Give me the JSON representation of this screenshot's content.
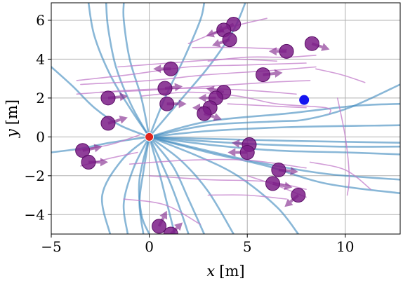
{
  "chart_data": {
    "type": "scatter",
    "xlabel_var": "x",
    "xlabel_unit": "[m]",
    "ylabel_var": "y",
    "ylabel_unit": "[m]",
    "xlim": [
      -5,
      12.8
    ],
    "ylim": [
      -5,
      6.9
    ],
    "xticks": [
      -5,
      0,
      5,
      10
    ],
    "yticks": [
      -4,
      -2,
      0,
      2,
      4,
      6
    ],
    "xtick_labels": [
      "−5",
      "0",
      "5",
      "10"
    ],
    "ytick_labels": [
      "−4",
      "−2",
      "0",
      "2",
      "4",
      "6"
    ],
    "grid": true,
    "colors": {
      "robot": "#e0231c",
      "goal": "#1414f0",
      "agent": "#7b1c87",
      "robot_trajectory": "#3b87bd",
      "agent_trajectory": "#c27bc9",
      "grid": "#b0b0b0"
    },
    "robot": {
      "x": 0,
      "y": 0
    },
    "goal": {
      "x": 7.9,
      "y": 1.9
    },
    "agents": [
      {
        "x": 4.3,
        "y": 5.8,
        "dx": -0.9,
        "dy": -0.4
      },
      {
        "x": 3.8,
        "y": 5.5,
        "dx": -0.9,
        "dy": -0.3
      },
      {
        "x": 4.1,
        "y": 5.0,
        "dx": -0.9,
        "dy": -0.3
      },
      {
        "x": 7.0,
        "y": 4.4,
        "dx": -0.9,
        "dy": 0.0
      },
      {
        "x": 8.3,
        "y": 4.8,
        "dx": 0.9,
        "dy": -0.3
      },
      {
        "x": 1.1,
        "y": 3.5,
        "dx": -0.9,
        "dy": 0.0
      },
      {
        "x": 5.8,
        "y": 3.2,
        "dx": 1.0,
        "dy": 0.1
      },
      {
        "x": 0.8,
        "y": 2.5,
        "dx": 0.9,
        "dy": 0.1
      },
      {
        "x": 3.8,
        "y": 2.3,
        "dx": -0.9,
        "dy": 0.2
      },
      {
        "x": 3.4,
        "y": 2.0,
        "dx": -0.9,
        "dy": 0.0
      },
      {
        "x": 0.9,
        "y": 1.7,
        "dx": 1.0,
        "dy": 0.0
      },
      {
        "x": 3.1,
        "y": 1.5,
        "dx": -0.9,
        "dy": 0.0
      },
      {
        "x": 2.8,
        "y": 1.2,
        "dx": 0.9,
        "dy": -0.3
      },
      {
        "x": -2.1,
        "y": 2.0,
        "dx": 1.0,
        "dy": 0.1
      },
      {
        "x": -2.1,
        "y": 0.7,
        "dx": 1.0,
        "dy": 0.3
      },
      {
        "x": 5.1,
        "y": -0.4,
        "dx": -0.9,
        "dy": 0.1
      },
      {
        "x": 5.0,
        "y": -0.8,
        "dx": -1.0,
        "dy": 0.0
      },
      {
        "x": -3.4,
        "y": -0.7,
        "dx": 1.0,
        "dy": 0.2
      },
      {
        "x": -3.1,
        "y": -1.3,
        "dx": 1.0,
        "dy": 0.0
      },
      {
        "x": 6.6,
        "y": -1.7,
        "dx": 1.0,
        "dy": -0.1
      },
      {
        "x": 6.3,
        "y": -2.4,
        "dx": 1.0,
        "dy": -0.2
      },
      {
        "x": 7.6,
        "y": -3.0,
        "dx": -0.7,
        "dy": -0.6
      },
      {
        "x": 0.5,
        "y": -4.6,
        "dx": 0.4,
        "dy": 0.8
      },
      {
        "x": 1.1,
        "y": -5.0,
        "dx": 0.6,
        "dy": 0.6
      }
    ],
    "robot_trajectories": [
      [
        [
          0,
          0
        ],
        [
          -1,
          1.5
        ],
        [
          -2,
          3.2
        ],
        [
          -2.8,
          5.2
        ],
        [
          -3.1,
          6.9
        ]
      ],
      [
        [
          0,
          0
        ],
        [
          -0.9,
          1.6
        ],
        [
          -1.7,
          3.6
        ],
        [
          -2.1,
          5.6
        ],
        [
          -2.2,
          6.9
        ]
      ],
      [
        [
          0,
          0
        ],
        [
          -0.4,
          2
        ],
        [
          -1,
          4
        ],
        [
          -1.3,
          6
        ],
        [
          -1.3,
          6.9
        ]
      ],
      [
        [
          0,
          0
        ],
        [
          0.8,
          2
        ],
        [
          1.8,
          4.1
        ],
        [
          2.6,
          6
        ],
        [
          2.8,
          6.9
        ]
      ],
      [
        [
          0,
          0
        ],
        [
          1.6,
          1.9
        ],
        [
          3.1,
          3.7
        ],
        [
          4.3,
          5.5
        ],
        [
          4.9,
          6.9
        ]
      ],
      [
        [
          0,
          0
        ],
        [
          -1.5,
          0.6
        ],
        [
          -2.8,
          1.5
        ],
        [
          -3.9,
          2.6
        ],
        [
          -5,
          3.6
        ]
      ],
      [
        [
          0,
          0
        ],
        [
          -2,
          -0.3
        ],
        [
          -3.5,
          -0.6
        ],
        [
          -5,
          -0.8
        ]
      ],
      [
        [
          0,
          0
        ],
        [
          -1.4,
          -1.2
        ],
        [
          -2.4,
          -3
        ],
        [
          -2,
          -5
        ]
      ],
      [
        [
          0,
          0
        ],
        [
          -0.8,
          -1.6
        ],
        [
          -1.3,
          -3.4
        ],
        [
          -1.1,
          -5
        ]
      ],
      [
        [
          0,
          0
        ],
        [
          -0.3,
          -1.8
        ],
        [
          -0.5,
          -3.4
        ],
        [
          -0.3,
          -5
        ]
      ],
      [
        [
          0,
          0
        ],
        [
          0.5,
          -1.8
        ],
        [
          0.9,
          -3.4
        ],
        [
          1.3,
          -5
        ]
      ],
      [
        [
          0,
          0
        ],
        [
          1.2,
          -1.5
        ],
        [
          2,
          -3.2
        ],
        [
          2.8,
          -5
        ]
      ],
      [
        [
          0,
          0
        ],
        [
          1.6,
          -1.2
        ],
        [
          3,
          -2.8
        ],
        [
          4.3,
          -5
        ]
      ],
      [
        [
          0,
          0
        ],
        [
          2.5,
          -1
        ],
        [
          4.5,
          -2
        ],
        [
          6.5,
          -3.6
        ],
        [
          7.6,
          -5
        ]
      ],
      [
        [
          0,
          0
        ],
        [
          3,
          -0.8
        ],
        [
          6,
          -1.5
        ],
        [
          9,
          -2.4
        ],
        [
          12.8,
          -2.9
        ]
      ],
      [
        [
          0,
          0
        ],
        [
          3,
          -0.4
        ],
        [
          6.5,
          -0.7
        ],
        [
          10,
          -0.8
        ],
        [
          12.8,
          -0.9
        ]
      ],
      [
        [
          0,
          0
        ],
        [
          3,
          -0.1
        ],
        [
          7,
          -0.2
        ],
        [
          12.8,
          -0.3
        ]
      ],
      [
        [
          0,
          0
        ],
        [
          3,
          0.3
        ],
        [
          7,
          0.5
        ],
        [
          12.8,
          0.6
        ]
      ],
      [
        [
          0,
          0
        ],
        [
          3,
          0.8
        ],
        [
          7,
          1.2
        ],
        [
          10.5,
          1.6
        ],
        [
          12.8,
          1.7
        ]
      ],
      [
        [
          0,
          0
        ],
        [
          3,
          0.6
        ],
        [
          6.5,
          0.8
        ],
        [
          8,
          0.9
        ],
        [
          10.2,
          1.5
        ],
        [
          12.8,
          2.7
        ]
      ],
      [
        [
          0,
          0
        ],
        [
          2.5,
          -0.6
        ],
        [
          5.5,
          -1.3
        ],
        [
          9,
          -1.9
        ],
        [
          12.8,
          -2.2
        ]
      ],
      [
        [
          0,
          0
        ],
        [
          2.5,
          -0.2
        ],
        [
          6,
          -0.4
        ],
        [
          9.5,
          -0.5
        ],
        [
          12.8,
          -0.5
        ]
      ],
      [
        [
          0,
          0
        ],
        [
          -0.5,
          -2.2
        ],
        [
          -0.4,
          -4
        ],
        [
          0,
          -5
        ]
      ],
      [
        [
          0,
          0
        ],
        [
          1,
          -2.2
        ],
        [
          1.6,
          -3.8
        ],
        [
          2,
          -5
        ]
      ]
    ],
    "agent_trajectories": [
      [
        [
          -3.7,
          2.9
        ],
        [
          -1,
          3.2
        ],
        [
          2,
          3.6
        ],
        [
          5,
          3.7
        ],
        [
          8,
          3.8
        ]
      ],
      [
        [
          -3.5,
          2.7
        ],
        [
          0,
          2.9
        ],
        [
          3,
          3.2
        ],
        [
          6,
          3.4
        ],
        [
          8.5,
          3.6
        ]
      ],
      [
        [
          -2.5,
          2.3
        ],
        [
          0,
          2.4
        ],
        [
          3,
          2.6
        ],
        [
          6,
          2.8
        ],
        [
          8.2,
          2.9
        ]
      ],
      [
        [
          -3.7,
          2.2
        ],
        [
          -1,
          2.4
        ],
        [
          2,
          2.5
        ],
        [
          5,
          2.4
        ],
        [
          7.5,
          2.2
        ]
      ],
      [
        [
          2,
          4.8
        ],
        [
          4,
          5.6
        ],
        [
          6,
          6.1
        ]
      ],
      [
        [
          2.2,
          4.6
        ],
        [
          4.5,
          4.6
        ],
        [
          7,
          4.5
        ]
      ],
      [
        [
          3,
          3.9
        ],
        [
          5,
          4.1
        ],
        [
          7,
          4.1
        ],
        [
          8.5,
          4.2
        ]
      ],
      [
        [
          -1.6,
          3.6
        ],
        [
          1,
          3.8
        ],
        [
          4,
          4
        ],
        [
          6.5,
          3.9
        ]
      ],
      [
        [
          8.5,
          3.5
        ],
        [
          9.8,
          3.2
        ],
        [
          11,
          2.8
        ]
      ],
      [
        [
          -0.4,
          2.1
        ],
        [
          2,
          2.3
        ],
        [
          4.5,
          2.1
        ],
        [
          6.5,
          1.7
        ],
        [
          9,
          1.5
        ],
        [
          9.2,
          1.2
        ]
      ],
      [
        [
          4,
          1.7
        ],
        [
          6,
          1.6
        ],
        [
          8,
          1.5
        ]
      ],
      [
        [
          9.6,
          2
        ],
        [
          10,
          0
        ],
        [
          10.2,
          -2
        ],
        [
          10.1,
          -3
        ]
      ],
      [
        [
          -1,
          -1.4
        ],
        [
          2,
          -1.2
        ],
        [
          5,
          -1.2
        ],
        [
          8,
          -1.6
        ]
      ],
      [
        [
          0,
          -2
        ],
        [
          3,
          -2.2
        ],
        [
          6,
          -2.3
        ],
        [
          8,
          -2.7
        ]
      ],
      [
        [
          3,
          -3
        ],
        [
          5,
          -3
        ],
        [
          7,
          -3.2
        ]
      ],
      [
        [
          5,
          -2
        ],
        [
          6.5,
          -2.5
        ],
        [
          8,
          -3.1
        ]
      ],
      [
        [
          8.2,
          -1.3
        ],
        [
          10,
          -1.7
        ],
        [
          11.3,
          -2.7
        ]
      ],
      [
        [
          -1.3,
          -3.2
        ],
        [
          0.8,
          -3.5
        ],
        [
          2.6,
          -4.5
        ]
      ],
      [
        [
          -3.7,
          -0.7
        ],
        [
          -2,
          -0.4
        ],
        [
          -0.5,
          0.1
        ]
      ],
      [
        [
          -3.5,
          -1.5
        ],
        [
          -2,
          -1.1
        ],
        [
          -0.6,
          -0.8
        ]
      ]
    ]
  }
}
